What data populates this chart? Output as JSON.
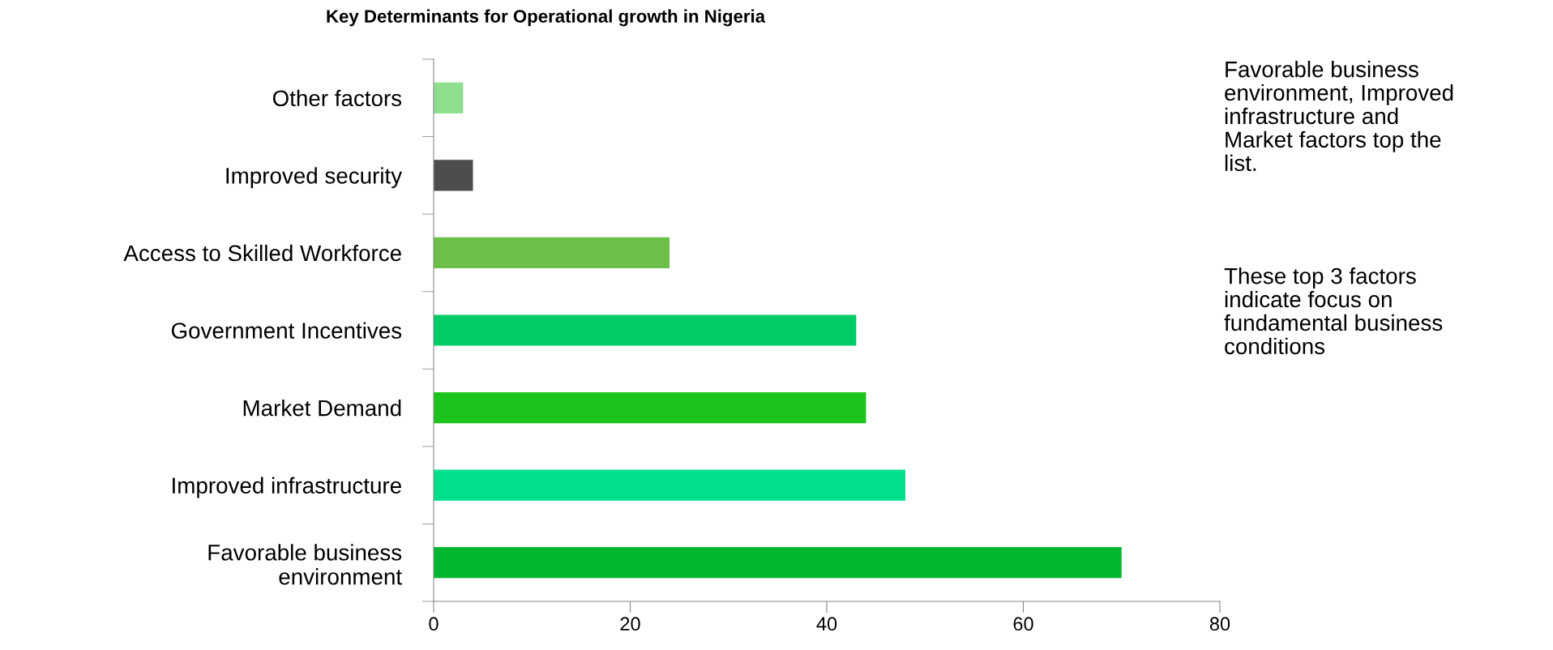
{
  "chart_data": {
    "type": "bar",
    "orientation": "horizontal",
    "title": "Key Determinants for Operational growth in Nigeria",
    "categories": [
      "Other factors",
      "Improved security",
      "Access to Skilled Workforce",
      "Government Incentives",
      "Market Demand",
      "Improved infrastructure",
      "Favorable business\nenvironment"
    ],
    "values": [
      3,
      4,
      24,
      43,
      44,
      48,
      70
    ],
    "colors": [
      "#8ddf8d",
      "#4d4d4d",
      "#6cc04a",
      "#00cc66",
      "#1ec41e",
      "#00e08c",
      "#00b82e"
    ],
    "xlim": [
      0,
      80
    ],
    "xticks": [
      0,
      20,
      40,
      60,
      80
    ],
    "grid": false,
    "legend": false,
    "annotations": [
      "Favorable business\nenvironment, Improved\ninfrastructure and\nMarket factors top the\nlist.",
      "These top 3 factors\nindicate focus on\nfundamental business\nconditions"
    ]
  }
}
